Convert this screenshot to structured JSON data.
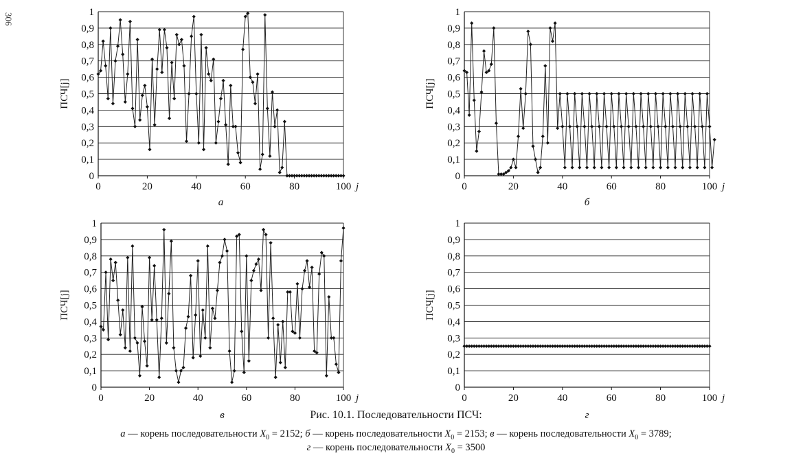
{
  "page_number": "306",
  "figure_title": "Рис. 10.1. Последовательности ПСЧ:",
  "caption": {
    "line1": [
      {
        "letter": "а",
        "text": " — корень последовательности ",
        "var": "X",
        "sub": "0",
        "value": " = 2152; "
      },
      {
        "letter": "б",
        "text": " — корень последовательности ",
        "var": "X",
        "sub": "0",
        "value": " = 2153; "
      },
      {
        "letter": "в",
        "text": " — корень последовательности ",
        "var": "X",
        "sub": "0",
        "value": " = 3789;"
      }
    ],
    "line2": [
      {
        "letter": "г",
        "text": " — корень последовательности ",
        "var": "X",
        "sub": "0",
        "value": " = 3500"
      }
    ]
  },
  "chart_data": [
    {
      "type": "line",
      "panel_label": "а",
      "ylabel": "ПСЧ[j]",
      "xlabel": "j",
      "xlim": [
        0,
        100
      ],
      "ylim": [
        0,
        1
      ],
      "xticks": [
        "0",
        "20",
        "40",
        "60",
        "80",
        "100"
      ],
      "yticks": [
        "0",
        "0,1",
        "0,2",
        "0,3",
        "0,4",
        "0,5",
        "0,6",
        "0,7",
        "0,8",
        "0,9",
        "1"
      ],
      "grid": "horizontal",
      "x_start": 0,
      "values": [
        0.62,
        0.64,
        0.82,
        0.67,
        0.47,
        0.9,
        0.44,
        0.7,
        0.79,
        0.95,
        0.74,
        0.45,
        0.62,
        0.94,
        0.41,
        0.3,
        0.83,
        0.34,
        0.49,
        0.55,
        0.42,
        0.16,
        0.71,
        0.31,
        0.65,
        0.89,
        0.63,
        0.89,
        0.78,
        0.35,
        0.69,
        0.47,
        0.86,
        0.8,
        0.83,
        0.67,
        0.21,
        0.5,
        0.85,
        0.97,
        0.5,
        0.2,
        0.86,
        0.16,
        0.78,
        0.62,
        0.58,
        0.71,
        0.2,
        0.33,
        0.47,
        0.58,
        0.31,
        0.07,
        0.55,
        0.3,
        0.3,
        0.14,
        0.08,
        0.77,
        0.97,
        0.99,
        0.6,
        0.57,
        0.44,
        0.62,
        0.04,
        0.13,
        0.98,
        0.41,
        0.12,
        0.51,
        0.3,
        0.4,
        0.02,
        0.05,
        0.33,
        0,
        0,
        0,
        0,
        0,
        0,
        0,
        0,
        0,
        0,
        0,
        0,
        0,
        0,
        0,
        0,
        0,
        0,
        0,
        0,
        0,
        0,
        0,
        0
      ]
    },
    {
      "type": "line",
      "panel_label": "б",
      "ylabel": "ПСЧ[j]",
      "xlabel": "j",
      "xlim": [
        0,
        100
      ],
      "ylim": [
        0,
        1
      ],
      "xticks": [
        "0",
        "20",
        "40",
        "60",
        "80",
        "100"
      ],
      "yticks": [
        "0",
        "0,1",
        "0,2",
        "0,3",
        "0,4",
        "0,5",
        "0,6",
        "0,7",
        "0,8",
        "0,9",
        "1"
      ],
      "grid": "horizontal",
      "x_start": 0,
      "values": [
        0.64,
        0.63,
        0.37,
        0.93,
        0.46,
        0.15,
        0.27,
        0.51,
        0.76,
        0.63,
        0.64,
        0.68,
        0.9,
        0.32,
        0.01,
        0.01,
        0.01,
        0.02,
        0.03,
        0.05,
        0.1,
        0.05,
        0.24,
        0.53,
        0.29,
        0.5,
        0.88,
        0.8,
        0.18,
        0.1,
        0.02,
        0.05,
        0.24,
        0.67,
        0.2,
        0.9,
        0.82,
        0.93,
        0.29,
        0.5,
        0.3,
        0.05,
        0.5,
        0.3,
        0.05,
        0.5,
        0.3,
        0.05,
        0.5,
        0.3,
        0.05,
        0.5,
        0.3,
        0.05,
        0.5,
        0.3,
        0.05,
        0.5,
        0.3,
        0.05,
        0.5,
        0.3,
        0.05,
        0.5,
        0.3,
        0.05,
        0.5,
        0.3,
        0.05,
        0.5,
        0.3,
        0.05,
        0.5,
        0.3,
        0.05,
        0.5,
        0.3,
        0.05,
        0.5,
        0.3,
        0.05,
        0.5,
        0.3,
        0.05,
        0.5,
        0.3,
        0.05,
        0.5,
        0.3,
        0.05,
        0.5,
        0.3,
        0.05,
        0.5,
        0.3,
        0.05,
        0.5,
        0.3,
        0.05,
        0.5,
        0.3,
        0.05,
        0.22
      ]
    },
    {
      "type": "line",
      "panel_label": "в",
      "ylabel": "ПСЧ[j]",
      "xlabel": "j",
      "xlim": [
        0,
        100
      ],
      "ylim": [
        0,
        1
      ],
      "xticks": [
        "0",
        "20",
        "40",
        "60",
        "80",
        "100"
      ],
      "yticks": [
        "0",
        "0,1",
        "0,2",
        "0,3",
        "0,4",
        "0,5",
        "0,6",
        "0,7",
        "0,8",
        "0,9",
        "1"
      ],
      "grid": "horizontal",
      "x_start": 0,
      "values": [
        0.37,
        0.35,
        0.7,
        0.29,
        0.78,
        0.65,
        0.76,
        0.53,
        0.32,
        0.47,
        0.24,
        0.79,
        0.22,
        0.86,
        0.3,
        0.27,
        0.07,
        0.49,
        0.28,
        0.13,
        0.79,
        0.41,
        0.74,
        0.41,
        0.06,
        0.42,
        0.96,
        0.27,
        0.57,
        0.89,
        0.24,
        0.1,
        0.03,
        0.1,
        0.12,
        0.36,
        0.43,
        0.68,
        0.18,
        0.44,
        0.77,
        0.19,
        0.47,
        0.3,
        0.86,
        0.24,
        0.48,
        0.42,
        0.59,
        0.76,
        0.8,
        0.9,
        0.83,
        0.22,
        0.03,
        0.1,
        0.92,
        0.93,
        0.34,
        0.09,
        0.8,
        0.16,
        0.65,
        0.71,
        0.75,
        0.78,
        0.59,
        0.96,
        0.93,
        0.3,
        0.88,
        0.42,
        0.06,
        0.38,
        0.15,
        0.4,
        0.12,
        0.58,
        0.58,
        0.34,
        0.33,
        0.63,
        0.3,
        0.6,
        0.71,
        0.77,
        0.61,
        0.73,
        0.22,
        0.21,
        0.69,
        0.82,
        0.8,
        0.07,
        0.55,
        0.3,
        0.3,
        0.14,
        0.09,
        0.77,
        0.97
      ]
    },
    {
      "type": "line",
      "panel_label": "г",
      "ylabel": "ПСЧ[j]",
      "xlabel": "j",
      "xlim": [
        0,
        100
      ],
      "ylim": [
        0,
        1
      ],
      "xticks": [
        "0",
        "20",
        "40",
        "60",
        "80",
        "100"
      ],
      "yticks": [
        "0",
        "0,1",
        "0,2",
        "0,3",
        "0,4",
        "0,5",
        "0,6",
        "0,7",
        "0,8",
        "0,9",
        "1"
      ],
      "grid": "horizontal",
      "x_start": 0,
      "values": [
        0.25,
        0.25,
        0.25,
        0.25,
        0.25,
        0.25,
        0.25,
        0.25,
        0.25,
        0.25,
        0.25,
        0.25,
        0.25,
        0.25,
        0.25,
        0.25,
        0.25,
        0.25,
        0.25,
        0.25,
        0.25,
        0.25,
        0.25,
        0.25,
        0.25,
        0.25,
        0.25,
        0.25,
        0.25,
        0.25,
        0.25,
        0.25,
        0.25,
        0.25,
        0.25,
        0.25,
        0.25,
        0.25,
        0.25,
        0.25,
        0.25,
        0.25,
        0.25,
        0.25,
        0.25,
        0.25,
        0.25,
        0.25,
        0.25,
        0.25,
        0.25,
        0.25,
        0.25,
        0.25,
        0.25,
        0.25,
        0.25,
        0.25,
        0.25,
        0.25,
        0.25,
        0.25,
        0.25,
        0.25,
        0.25,
        0.25,
        0.25,
        0.25,
        0.25,
        0.25,
        0.25,
        0.25,
        0.25,
        0.25,
        0.25,
        0.25,
        0.25,
        0.25,
        0.25,
        0.25,
        0.25,
        0.25,
        0.25,
        0.25,
        0.25,
        0.25,
        0.25,
        0.25,
        0.25,
        0.25,
        0.25,
        0.25,
        0.25,
        0.25,
        0.25,
        0.25,
        0.25,
        0.25,
        0.25,
        0.25,
        0.25
      ]
    }
  ]
}
